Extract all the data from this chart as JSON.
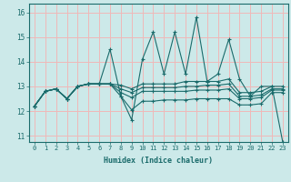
{
  "title": "",
  "xlabel": "Humidex (Indice chaleur)",
  "bg_color": "#cce9e9",
  "grid_color": "#f0b8b8",
  "line_color": "#1a6b6b",
  "xlim": [
    -0.5,
    23.5
  ],
  "ylim": [
    10.75,
    16.35
  ],
  "yticks": [
    11,
    12,
    13,
    14,
    15,
    16
  ],
  "xticks": [
    0,
    1,
    2,
    3,
    4,
    5,
    6,
    7,
    8,
    9,
    10,
    11,
    12,
    13,
    14,
    15,
    16,
    17,
    18,
    19,
    20,
    21,
    22,
    23
  ],
  "series": [
    [
      12.2,
      12.8,
      12.9,
      12.5,
      13.0,
      13.1,
      13.1,
      14.5,
      12.6,
      11.65,
      14.1,
      15.2,
      13.5,
      15.2,
      13.5,
      15.8,
      13.2,
      13.5,
      14.9,
      13.3,
      12.6,
      13.0,
      13.0,
      10.75
    ],
    [
      12.2,
      12.8,
      12.9,
      12.5,
      13.0,
      13.1,
      13.1,
      13.1,
      13.05,
      12.9,
      13.1,
      13.1,
      13.1,
      13.1,
      13.2,
      13.2,
      13.2,
      13.2,
      13.3,
      12.75,
      12.75,
      12.8,
      13.0,
      13.0
    ],
    [
      12.2,
      12.8,
      12.9,
      12.5,
      13.0,
      13.1,
      13.1,
      13.1,
      12.9,
      12.75,
      12.95,
      12.95,
      12.95,
      12.95,
      13.0,
      13.0,
      13.05,
      13.05,
      13.1,
      12.6,
      12.6,
      12.65,
      12.9,
      12.9
    ],
    [
      12.2,
      12.8,
      12.9,
      12.5,
      13.0,
      13.1,
      13.1,
      13.1,
      12.75,
      12.55,
      12.8,
      12.8,
      12.8,
      12.8,
      12.8,
      12.85,
      12.85,
      12.85,
      12.9,
      12.5,
      12.5,
      12.55,
      12.85,
      12.85
    ],
    [
      12.2,
      12.8,
      12.9,
      12.5,
      13.0,
      13.1,
      13.1,
      13.1,
      12.6,
      12.05,
      12.4,
      12.4,
      12.45,
      12.45,
      12.45,
      12.5,
      12.5,
      12.5,
      12.5,
      12.25,
      12.25,
      12.3,
      12.75,
      12.75
    ]
  ]
}
